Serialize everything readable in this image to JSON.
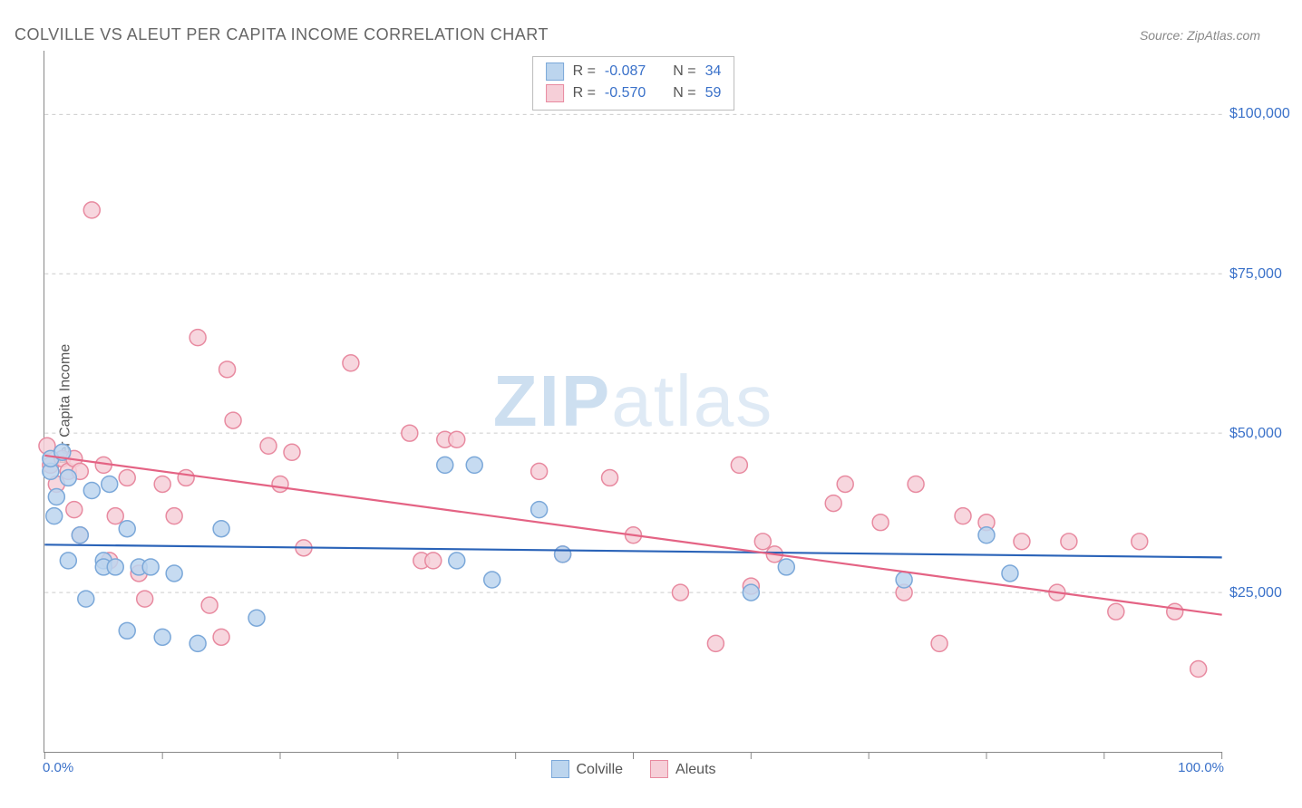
{
  "title": "COLVILLE VS ALEUT PER CAPITA INCOME CORRELATION CHART",
  "source": "Source: ZipAtlas.com",
  "ylabel": "Per Capita Income",
  "watermark_a": "ZIP",
  "watermark_b": "atlas",
  "chart": {
    "type": "scatter",
    "background": "#ffffff",
    "grid_color": "#cccccc",
    "axis_color": "#888888",
    "xlim": [
      0,
      100
    ],
    "ylim": [
      0,
      110000
    ],
    "x_tick_positions": [
      0,
      10,
      20,
      30,
      40,
      50,
      60,
      70,
      80,
      90,
      100
    ],
    "x_tick_labels_shown": {
      "0": "0.0%",
      "100": "100.0%"
    },
    "y_gridlines": [
      25000,
      50000,
      75000,
      100000
    ],
    "y_tick_labels": {
      "25000": "$25,000",
      "50000": "$50,000",
      "75000": "$75,000",
      "100000": "$100,000"
    },
    "marker_radius": 9,
    "marker_stroke_width": 1.5,
    "trend_line_width": 2.2,
    "series": [
      {
        "name": "Colville",
        "fill": "#bcd5ee",
        "stroke": "#7ba8d9",
        "line_color": "#2a63b8",
        "R": "-0.087",
        "N": "34",
        "trend": {
          "x1": 0,
          "y1": 32500,
          "x2": 100,
          "y2": 30500
        },
        "points": [
          [
            0.5,
            44000
          ],
          [
            0.5,
            46000
          ],
          [
            0.8,
            37000
          ],
          [
            1,
            40000
          ],
          [
            1.5,
            47000
          ],
          [
            2,
            30000
          ],
          [
            2,
            43000
          ],
          [
            3,
            34000
          ],
          [
            3.5,
            24000
          ],
          [
            4,
            41000
          ],
          [
            5,
            30000
          ],
          [
            5,
            29000
          ],
          [
            5.5,
            42000
          ],
          [
            6,
            29000
          ],
          [
            7,
            35000
          ],
          [
            7,
            19000
          ],
          [
            8,
            29000
          ],
          [
            9,
            29000
          ],
          [
            10,
            18000
          ],
          [
            11,
            28000
          ],
          [
            13,
            17000
          ],
          [
            15,
            35000
          ],
          [
            18,
            21000
          ],
          [
            34,
            45000
          ],
          [
            35,
            30000
          ],
          [
            36.5,
            45000
          ],
          [
            38,
            27000
          ],
          [
            42,
            38000
          ],
          [
            44,
            31000
          ],
          [
            60,
            25000
          ],
          [
            63,
            29000
          ],
          [
            73,
            27000
          ],
          [
            80,
            34000
          ],
          [
            82,
            28000
          ]
        ]
      },
      {
        "name": "Aleuts",
        "fill": "#f6cfd8",
        "stroke": "#e88aa0",
        "line_color": "#e46384",
        "R": "-0.570",
        "N": "59",
        "trend": {
          "x1": 0,
          "y1": 46500,
          "x2": 100,
          "y2": 21500
        },
        "points": [
          [
            0.2,
            48000
          ],
          [
            0.5,
            45000
          ],
          [
            1,
            42000
          ],
          [
            1.5,
            46000
          ],
          [
            2,
            44000
          ],
          [
            2.5,
            46000
          ],
          [
            2.5,
            38000
          ],
          [
            3,
            44000
          ],
          [
            3,
            34000
          ],
          [
            4,
            85000
          ],
          [
            5,
            45000
          ],
          [
            5.5,
            30000
          ],
          [
            6,
            37000
          ],
          [
            7,
            43000
          ],
          [
            8,
            28000
          ],
          [
            8.5,
            24000
          ],
          [
            10,
            42000
          ],
          [
            11,
            37000
          ],
          [
            12,
            43000
          ],
          [
            13,
            65000
          ],
          [
            14,
            23000
          ],
          [
            15,
            18000
          ],
          [
            15.5,
            60000
          ],
          [
            16,
            52000
          ],
          [
            19,
            48000
          ],
          [
            20,
            42000
          ],
          [
            21,
            47000
          ],
          [
            22,
            32000
          ],
          [
            26,
            61000
          ],
          [
            31,
            50000
          ],
          [
            32,
            30000
          ],
          [
            33,
            30000
          ],
          [
            34,
            49000
          ],
          [
            35,
            49000
          ],
          [
            42,
            44000
          ],
          [
            44,
            31000
          ],
          [
            48,
            43000
          ],
          [
            50,
            34000
          ],
          [
            54,
            25000
          ],
          [
            57,
            17000
          ],
          [
            59,
            45000
          ],
          [
            60,
            26000
          ],
          [
            61,
            33000
          ],
          [
            62,
            31000
          ],
          [
            67,
            39000
          ],
          [
            68,
            42000
          ],
          [
            71,
            36000
          ],
          [
            73,
            25000
          ],
          [
            74,
            42000
          ],
          [
            76,
            17000
          ],
          [
            78,
            37000
          ],
          [
            80,
            36000
          ],
          [
            83,
            33000
          ],
          [
            86,
            25000
          ],
          [
            87,
            33000
          ],
          [
            91,
            22000
          ],
          [
            93,
            33000
          ],
          [
            96,
            22000
          ],
          [
            98,
            13000
          ]
        ]
      }
    ]
  },
  "legend_bottom": [
    {
      "label": "Colville",
      "fill": "#bcd5ee",
      "stroke": "#7ba8d9"
    },
    {
      "label": "Aleuts",
      "fill": "#f6cfd8",
      "stroke": "#e88aa0"
    }
  ]
}
